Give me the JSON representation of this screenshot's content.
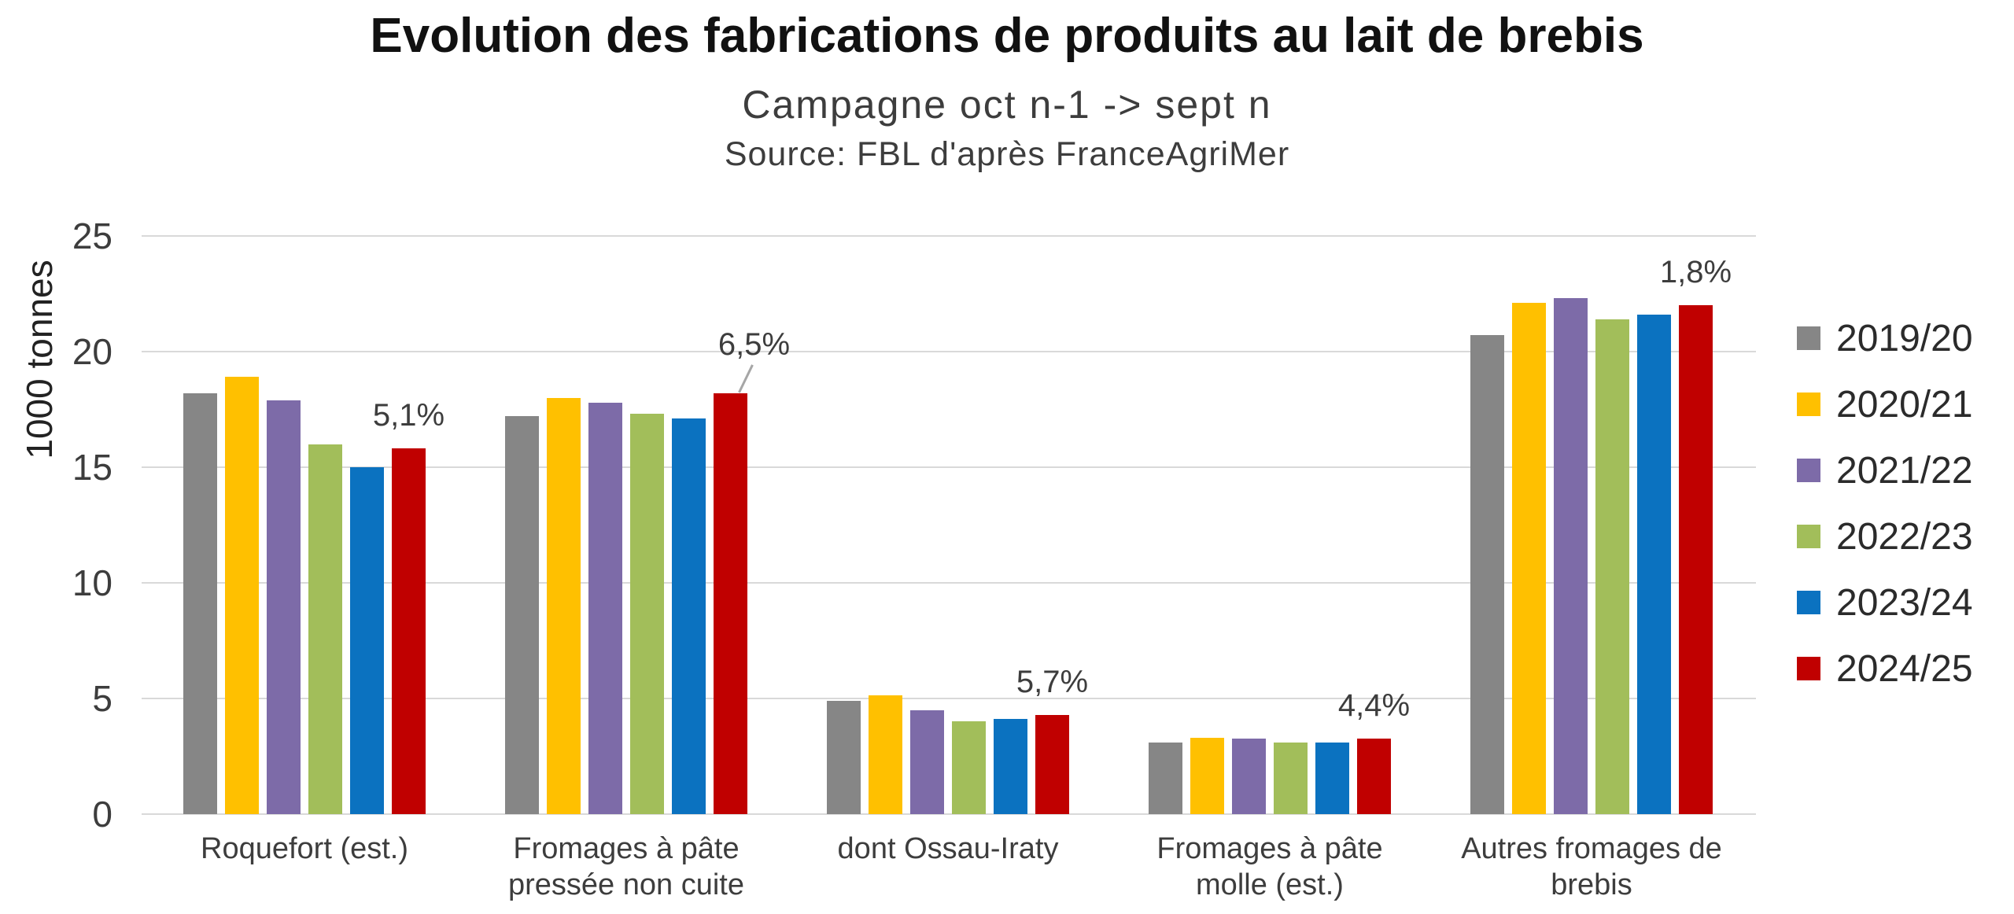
{
  "chart_data": {
    "type": "bar",
    "title": "Evolution des fabrications de produits au lait de brebis",
    "subtitle": "Campagne oct n-1 -> sept n",
    "source_line": "Source: FBL d'après FranceAgriMer",
    "ylabel": "1000 tonnes",
    "xlabel": "",
    "ylim": [
      0,
      25
    ],
    "yticks": [
      0,
      5,
      10,
      15,
      20,
      25
    ],
    "grid": true,
    "legend_position": "right",
    "categories": [
      "Roquefort (est.)",
      "Fromages à pâte pressée non cuite",
      "dont Ossau-Iraty",
      "Fromages à pâte molle (est.)",
      "Autres fromages de brebis"
    ],
    "category_label_lines": [
      [
        "Roquefort (est.)"
      ],
      [
        "Fromages à pâte",
        "pressée non cuite"
      ],
      [
        "dont Ossau-Iraty"
      ],
      [
        "Fromages à pâte",
        "molle (est.)"
      ],
      [
        "Autres fromages de",
        "brebis"
      ]
    ],
    "series": [
      {
        "name": "2019/20",
        "color": "#868686",
        "values": [
          18.2,
          17.2,
          4.9,
          3.1,
          20.7
        ]
      },
      {
        "name": "2020/21",
        "color": "#FFC000",
        "values": [
          18.9,
          18.0,
          5.15,
          3.3,
          22.1
        ]
      },
      {
        "name": "2021/22",
        "color": "#7D6BA8",
        "values": [
          17.9,
          17.8,
          4.5,
          3.25,
          22.3
        ]
      },
      {
        "name": "2022/23",
        "color": "#A2BE5A",
        "values": [
          16.0,
          17.3,
          4.0,
          3.1,
          21.4
        ]
      },
      {
        "name": "2023/24",
        "color": "#0B72C0",
        "values": [
          15.0,
          17.1,
          4.1,
          3.1,
          21.6
        ]
      },
      {
        "name": "2024/25",
        "color": "#C00000",
        "values": [
          15.8,
          18.2,
          4.3,
          3.25,
          22.0
        ]
      }
    ],
    "annotations": [
      {
        "category_index": 0,
        "text": "5,1%",
        "leader": false
      },
      {
        "category_index": 1,
        "text": "6,5%",
        "leader": true
      },
      {
        "category_index": 2,
        "text": "5,7%",
        "leader": false
      },
      {
        "category_index": 3,
        "text": "4,4%",
        "leader": false
      },
      {
        "category_index": 4,
        "text": "1,8%",
        "leader": false
      }
    ],
    "annotation_series": "2024/25"
  }
}
